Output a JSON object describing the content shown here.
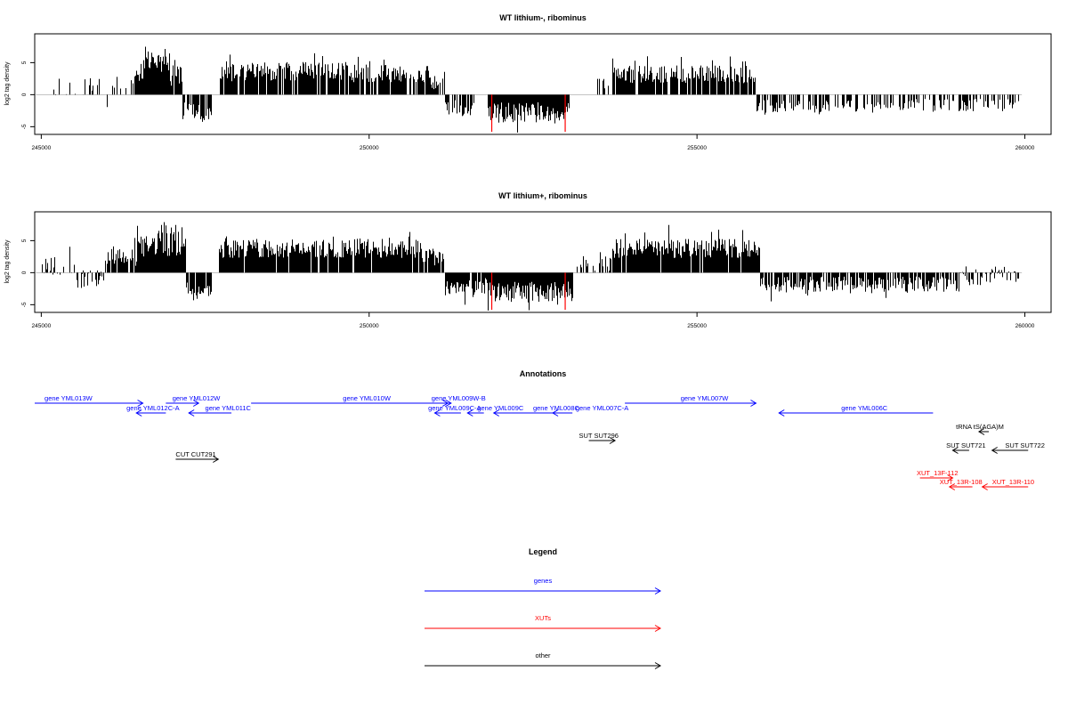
{
  "colors": {
    "genes": "#0000ff",
    "XUTs": "#ff0000",
    "other": "#000000",
    "highlight": "#ff0000"
  },
  "chart_data": [
    {
      "type": "bar",
      "title": "WT lithium-, ribominus",
      "ylabel": "log2 tag density",
      "xlim": [
        244900,
        260400
      ],
      "ylim": [
        -6.2,
        9.5
      ],
      "xticks": [
        245000,
        250000,
        255000,
        260000
      ],
      "xtick_labels": [
        "245000",
        "250000",
        "255000",
        "260000"
      ],
      "yticks": [
        -5,
        0,
        5
      ],
      "ytick_labels": [
        "-5",
        "0",
        "5"
      ],
      "series": [
        {
          "segments": [
            {
              "x0": 245000,
              "x1": 245950,
              "mean": 1.2,
              "amp": 1.4,
              "density": 0.25
            },
            {
              "x0": 245950,
              "x1": 246050,
              "mean": -1.0,
              "amp": 1.2,
              "density": 0.3
            },
            {
              "x0": 246050,
              "x1": 246400,
              "mean": 1.8,
              "amp": 1.2,
              "density": 0.35
            },
            {
              "x0": 246400,
              "x1": 246550,
              "mean": 3.5,
              "amp": 1.5,
              "density": 0.9
            },
            {
              "x0": 246550,
              "x1": 246950,
              "mean": 5.5,
              "amp": 2.0,
              "density": 1.0
            },
            {
              "x0": 246950,
              "x1": 247150,
              "mean": 3.2,
              "amp": 1.8,
              "density": 0.9
            },
            {
              "x0": 247150,
              "x1": 247400,
              "mean": -2.5,
              "amp": 1.4,
              "density": 0.6
            },
            {
              "x0": 247400,
              "x1": 247600,
              "mean": -3.0,
              "amp": 1.0,
              "density": 0.8
            },
            {
              "x0": 247600,
              "x1": 247700,
              "mean": 0.0,
              "amp": 0.3,
              "density": 0.0
            },
            {
              "x0": 247700,
              "x1": 249700,
              "mean": 3.6,
              "amp": 1.5,
              "density": 0.9
            },
            {
              "x0": 249700,
              "x1": 250900,
              "mean": 3.3,
              "amp": 1.4,
              "density": 0.85
            },
            {
              "x0": 250900,
              "x1": 251150,
              "mean": 2.0,
              "amp": 1.2,
              "density": 0.8
            },
            {
              "x0": 251150,
              "x1": 251600,
              "mean": -2.2,
              "amp": 1.4,
              "density": 0.8
            },
            {
              "x0": 251600,
              "x1": 251800,
              "mean": 0.0,
              "amp": 0.3,
              "density": 0.0
            },
            {
              "x0": 251800,
              "x1": 253050,
              "mean": -2.8,
              "amp": 1.6,
              "density": 1.0
            },
            {
              "x0": 253050,
              "x1": 253400,
              "mean": 0.0,
              "amp": 0.3,
              "density": 0.0
            },
            {
              "x0": 253400,
              "x1": 253700,
              "mean": 1.5,
              "amp": 1.0,
              "density": 0.2
            },
            {
              "x0": 253700,
              "x1": 255900,
              "mean": 3.2,
              "amp": 1.4,
              "density": 0.85
            },
            {
              "x0": 255900,
              "x1": 258200,
              "mean": -1.8,
              "amp": 1.0,
              "density": 0.5
            },
            {
              "x0": 258200,
              "x1": 259900,
              "mean": -1.6,
              "amp": 1.0,
              "density": 0.35
            }
          ]
        }
      ],
      "highlights": [
        {
          "x": 251870,
          "y": -5.8
        },
        {
          "x": 252990,
          "y": -5.8
        }
      ]
    },
    {
      "type": "bar",
      "title": "WT lithium+, ribominus",
      "ylabel": "log2 tag density",
      "xlim": [
        244900,
        260400
      ],
      "ylim": [
        -6.2,
        9.5
      ],
      "xticks": [
        245000,
        250000,
        255000,
        260000
      ],
      "xtick_labels": [
        "245000",
        "250000",
        "255000",
        "260000"
      ],
      "yticks": [
        -5,
        0,
        5
      ],
      "ytick_labels": [
        "-5",
        "0",
        "5"
      ],
      "series": [
        {
          "segments": [
            {
              "x0": 245000,
              "x1": 245500,
              "mean": 1.0,
              "amp": 1.5,
              "density": 0.6
            },
            {
              "x0": 245500,
              "x1": 245950,
              "mean": -1.0,
              "amp": 1.4,
              "density": 0.5
            },
            {
              "x0": 245950,
              "x1": 246450,
              "mean": 2.4,
              "amp": 1.4,
              "density": 0.8
            },
            {
              "x0": 246450,
              "x1": 246700,
              "mean": 4.0,
              "amp": 1.8,
              "density": 1.0
            },
            {
              "x0": 246700,
              "x1": 247200,
              "mean": 5.0,
              "amp": 2.5,
              "density": 1.0
            },
            {
              "x0": 247200,
              "x1": 247600,
              "mean": -2.8,
              "amp": 1.5,
              "density": 0.9
            },
            {
              "x0": 247600,
              "x1": 247700,
              "mean": 0.0,
              "amp": 0.3,
              "density": 0.0
            },
            {
              "x0": 247700,
              "x1": 250800,
              "mean": 3.8,
              "amp": 1.5,
              "density": 0.95
            },
            {
              "x0": 250800,
              "x1": 251150,
              "mean": 2.5,
              "amp": 1.4,
              "density": 0.8
            },
            {
              "x0": 251150,
              "x1": 251800,
              "mean": -2.2,
              "amp": 1.4,
              "density": 0.9
            },
            {
              "x0": 251800,
              "x1": 253100,
              "mean": -3.0,
              "amp": 1.6,
              "density": 1.0
            },
            {
              "x0": 253100,
              "x1": 253700,
              "mean": 1.5,
              "amp": 1.2,
              "density": 0.3
            },
            {
              "x0": 253700,
              "x1": 255950,
              "mean": 3.8,
              "amp": 1.5,
              "density": 0.95
            },
            {
              "x0": 255950,
              "x1": 259000,
              "mean": -1.8,
              "amp": 1.2,
              "density": 0.8
            },
            {
              "x0": 259000,
              "x1": 259900,
              "mean": -0.5,
              "amp": 1.5,
              "density": 0.6
            }
          ]
        }
      ],
      "highlights": [
        {
          "x": 251870,
          "y": -5.8
        },
        {
          "x": 252990,
          "y": -5.8
        }
      ]
    }
  ],
  "annotations": {
    "title": "Annotations",
    "features": [
      {
        "label": "gene YML013W",
        "type": "genes",
        "strand": "+",
        "x0": 244900,
        "x1": 246550,
        "row": 0,
        "label_x": 245050
      },
      {
        "label": "gene YML012C-A",
        "type": "genes",
        "strand": "-",
        "x0": 246450,
        "x1": 246900,
        "row": 1,
        "label_x": 246300
      },
      {
        "label": "gene YML012W",
        "type": "genes",
        "strand": "+",
        "x0": 246900,
        "x1": 247400,
        "row": 0,
        "label_x": 247000
      },
      {
        "label": "gene YML011C",
        "type": "genes",
        "strand": "-",
        "x0": 247250,
        "x1": 247900,
        "row": 1,
        "label_x": 247500
      },
      {
        "label": "gene YML010W",
        "type": "genes",
        "strand": "+",
        "x0": 248200,
        "x1": 251200,
        "row": 0,
        "label_x": 249600
      },
      {
        "label": "gene YML009W-B",
        "type": "genes",
        "strand": "+",
        "x0": 251050,
        "x1": 251250,
        "row": 0,
        "label_x": 250950
      },
      {
        "label": "gene YML009C-A",
        "type": "genes",
        "strand": "-",
        "x0": 251000,
        "x1": 251400,
        "row": 1,
        "label_x": 250900
      },
      {
        "label": "gene YML009C",
        "type": "genes",
        "strand": "-",
        "x0": 251500,
        "x1": 251750,
        "row": 1,
        "label_x": 251650
      },
      {
        "label": "gene YML008C",
        "type": "genes",
        "strand": "-",
        "x0": 251900,
        "x1": 253000,
        "row": 1,
        "label_x": 252500
      },
      {
        "label": "gene YML007C-A",
        "type": "genes",
        "strand": "-",
        "x0": 252800,
        "x1": 253100,
        "row": 1,
        "label_x": 253150
      },
      {
        "label": "gene YML007W",
        "type": "genes",
        "strand": "+",
        "x0": 253900,
        "x1": 255900,
        "row": 0,
        "label_x": 254750
      },
      {
        "label": "gene YML006C",
        "type": "genes",
        "strand": "-",
        "x0": 256250,
        "x1": 258600,
        "row": 1,
        "label_x": 257200
      },
      {
        "label": "tRNA tS(AGA)M",
        "type": "other",
        "strand": "-",
        "x0": 259300,
        "x1": 259450,
        "row": 2,
        "label_x": 258950
      },
      {
        "label": "SUT SUT296",
        "type": "other",
        "strand": "+",
        "x0": 253350,
        "x1": 253750,
        "row": 3,
        "label_x": 253200
      },
      {
        "label": "SUT SUT721",
        "type": "other",
        "strand": "-",
        "x0": 258900,
        "x1": 259150,
        "row": 4,
        "label_x": 258800
      },
      {
        "label": "SUT SUT722",
        "type": "other",
        "strand": "-",
        "x0": 259500,
        "x1": 260050,
        "row": 4,
        "label_x": 259700
      },
      {
        "label": "CUT CUT291",
        "type": "other",
        "strand": "+",
        "x0": 247050,
        "x1": 247700,
        "row": 5,
        "label_x": 247050
      },
      {
        "label": "XUT_13F-112",
        "type": "XUTs",
        "strand": "+",
        "x0": 258400,
        "x1": 258900,
        "row": 6,
        "label_x": 258350
      },
      {
        "label": "XUT_13R-108",
        "type": "XUTs",
        "strand": "-",
        "x0": 258850,
        "x1": 259200,
        "row": 7,
        "label_x": 258700
      },
      {
        "label": "XUT_13R-110",
        "type": "XUTs",
        "strand": "-",
        "x0": 259350,
        "x1": 260050,
        "row": 7,
        "label_x": 259500
      }
    ]
  },
  "legend": {
    "title": "Legend",
    "items": [
      {
        "label": "genes",
        "type": "genes"
      },
      {
        "label": "XUTs",
        "type": "XUTs"
      },
      {
        "label": "other",
        "type": "other"
      }
    ]
  }
}
